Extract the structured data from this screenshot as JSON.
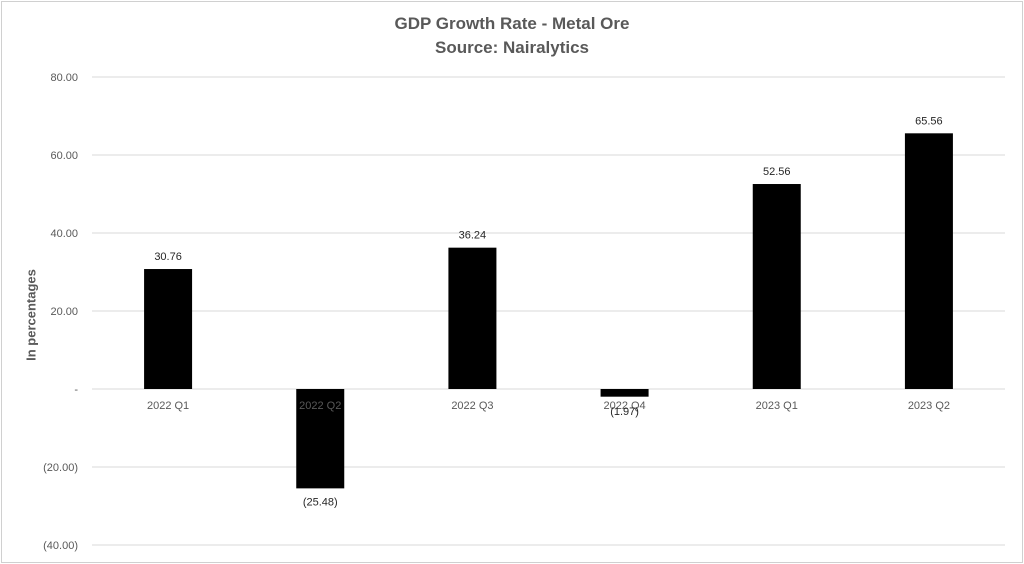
{
  "chart_data": {
    "type": "bar",
    "title": "GDP Growth Rate - Metal Ore",
    "subtitle": "Source: Nairalytics",
    "ylabel": "In percentages",
    "xlabel": "",
    "categories": [
      "2022 Q1",
      "2022 Q2",
      "2022 Q3",
      "2022 Q4",
      "2023 Q1",
      "2023 Q2"
    ],
    "values": [
      30.76,
      -25.48,
      36.24,
      -1.97,
      52.56,
      65.56
    ],
    "data_labels": [
      "30.76",
      "(25.48)",
      "36.24",
      "(1.97)",
      "52.56",
      "65.56"
    ],
    "ylim": [
      -40,
      80
    ],
    "yticks": [
      80,
      60,
      40,
      20,
      0,
      -20,
      -40
    ],
    "ytick_labels": [
      "80.00",
      "60.00",
      "40.00",
      "20.00",
      "-",
      "(20.00)",
      "(40.00)"
    ],
    "grid": true,
    "bar_color": "#000000",
    "gridline_color": "#d9d9d9",
    "text_color": "#595959"
  }
}
